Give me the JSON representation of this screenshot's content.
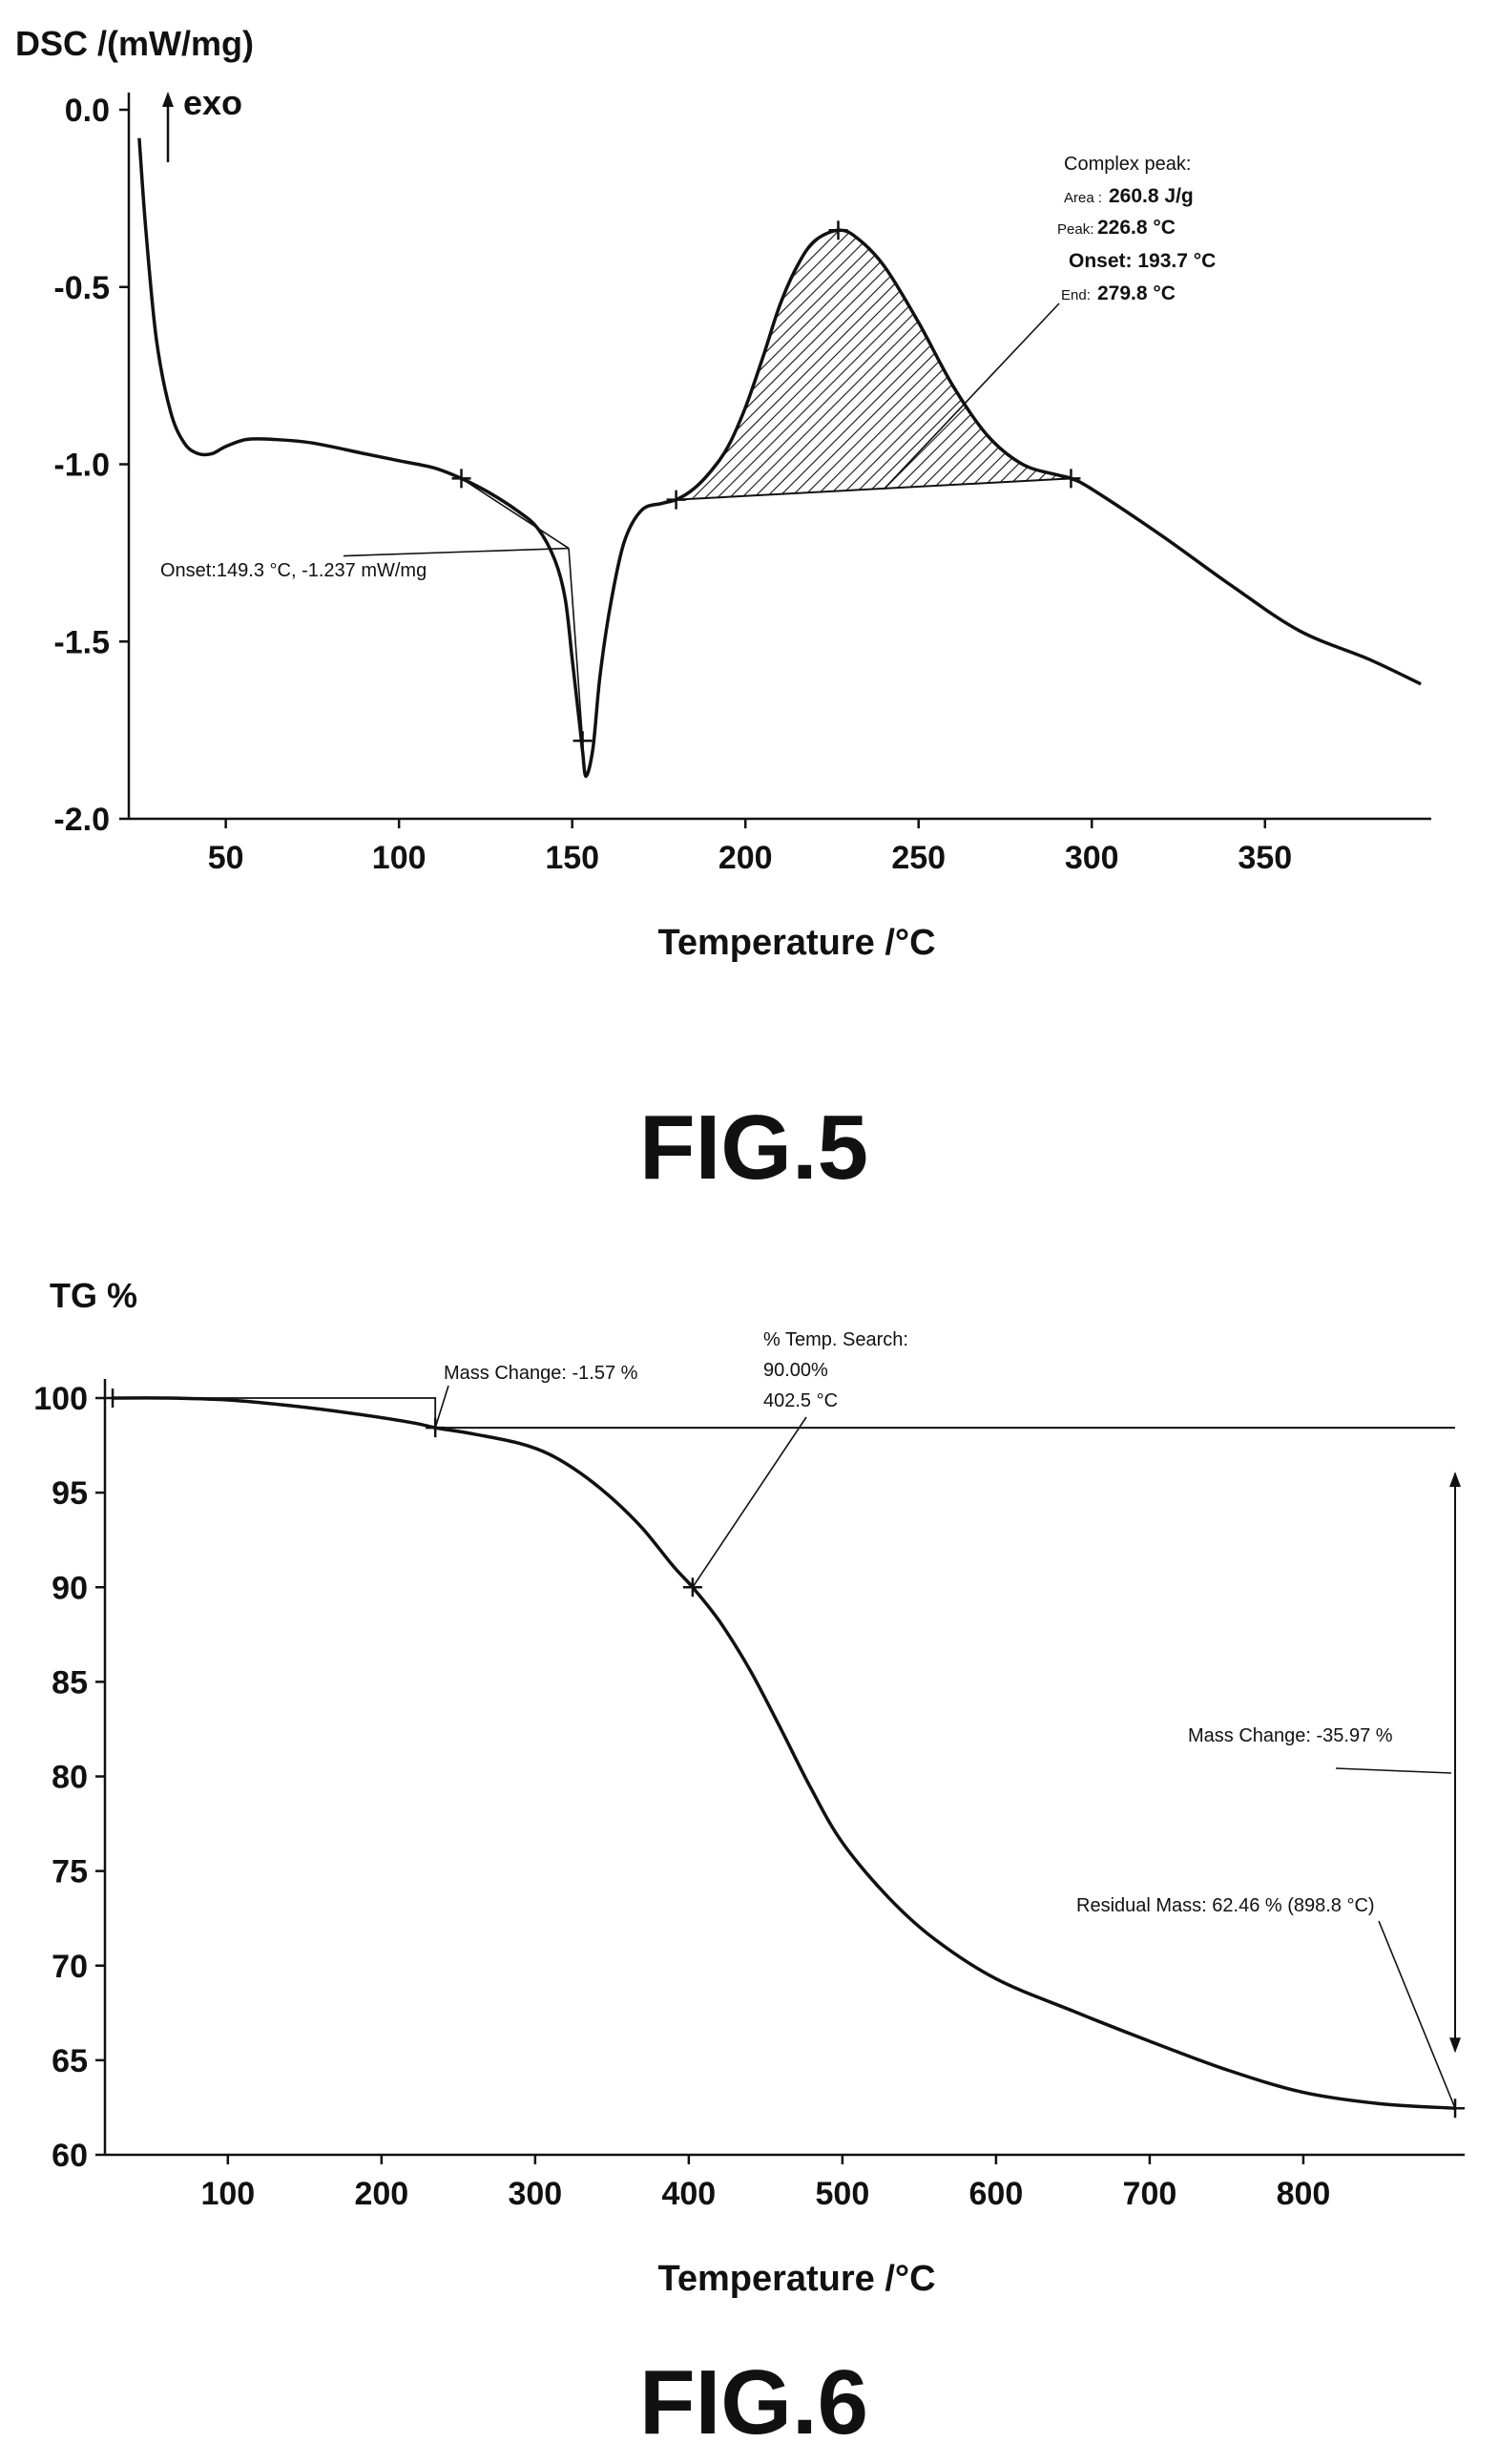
{
  "chart_data": [
    {
      "type": "line",
      "figure_label": "FIG.5",
      "ylabel": "DSC /(mW/mg)",
      "xlabel": "Temperature /°C",
      "exo_label": "exo",
      "xlim": [
        22,
        398
      ],
      "ylim": [
        -2.0,
        0.0
      ],
      "xticks": [
        50,
        100,
        150,
        200,
        250,
        300,
        350
      ],
      "yticks": [
        "0.0",
        "-0.5",
        "-1.0",
        "-1.5",
        "-2.0"
      ],
      "grid": false,
      "series": [
        {
          "x": [
            25,
            27,
            30,
            34,
            38,
            42,
            46,
            50,
            56,
            64,
            75,
            90,
            100,
            110,
            118,
            126,
            134,
            140,
            145,
            148,
            150,
            152,
            153,
            154,
            156,
            158,
            161,
            165,
            170,
            176,
            180,
            185,
            190,
            195,
            200,
            205,
            210,
            215,
            220,
            226.8,
            232,
            240,
            250,
            260,
            270,
            280,
            290,
            294,
            300,
            320,
            340,
            360,
            380,
            395
          ],
          "y": [
            -0.08,
            -0.35,
            -0.65,
            -0.85,
            -0.94,
            -0.97,
            -0.97,
            -0.95,
            -0.93,
            -0.93,
            -0.94,
            -0.97,
            -0.99,
            -1.01,
            -1.04,
            -1.08,
            -1.13,
            -1.18,
            -1.27,
            -1.38,
            -1.55,
            -1.72,
            -1.81,
            -1.88,
            -1.8,
            -1.6,
            -1.4,
            -1.22,
            -1.13,
            -1.11,
            -1.1,
            -1.07,
            -1.02,
            -0.95,
            -0.84,
            -0.7,
            -0.55,
            -0.44,
            -0.37,
            -0.34,
            -0.36,
            -0.44,
            -0.6,
            -0.78,
            -0.92,
            -1.0,
            -1.03,
            -1.04,
            -1.07,
            -1.2,
            -1.34,
            -1.47,
            -1.55,
            -1.62
          ]
        }
      ],
      "markers": [
        {
          "x": 118,
          "y": -1.04
        },
        {
          "x": 153,
          "y": -1.78
        },
        {
          "x": 180,
          "y": -1.1
        },
        {
          "x": 226.8,
          "y": -0.34
        },
        {
          "x": 294,
          "y": -1.04
        }
      ],
      "peak_shading": {
        "x_start": 180,
        "x_end": 294
      },
      "annotations": {
        "onset": "Onset:149.3 °C, -1.237 mW/mg",
        "complex_title": "Complex peak:",
        "area_label": "Area :",
        "area_value": "260.8 J/g",
        "peak_label": "Peak:",
        "peak_value": "226.8 °C",
        "onset2": "Onset: 193.7 °C",
        "end_label": "End:",
        "end_value": "279.8 °C"
      }
    },
    {
      "type": "line",
      "figure_label": "FIG.6",
      "ylabel": "TG %",
      "xlabel": "Temperature /°C",
      "xlim": [
        20,
        905
      ],
      "ylim": [
        60,
        100
      ],
      "xticks": [
        100,
        200,
        300,
        400,
        500,
        600,
        700,
        800
      ],
      "yticks": [
        100,
        95,
        90,
        85,
        80,
        75,
        70,
        65,
        60
      ],
      "grid": false,
      "series": [
        {
          "x": [
            25,
            60,
            100,
            140,
            180,
            220,
            235,
            260,
            290,
            310,
            330,
            350,
            370,
            390,
            402.5,
            420,
            440,
            460,
            480,
            500,
            530,
            560,
            600,
            650,
            700,
            750,
            800,
            850,
            898.8
          ],
          "y": [
            100,
            100,
            99.9,
            99.6,
            99.2,
            98.7,
            98.43,
            98.1,
            97.6,
            97.0,
            96.0,
            94.7,
            93.1,
            91.1,
            90.0,
            88.2,
            85.6,
            82.5,
            79.3,
            76.5,
            73.6,
            71.4,
            69.3,
            67.6,
            66.0,
            64.5,
            63.3,
            62.7,
            62.46
          ]
        }
      ],
      "markers": [
        {
          "x": 25,
          "y": 100
        },
        {
          "x": 235,
          "y": 98.43
        },
        {
          "x": 402.5,
          "y": 90.0
        },
        {
          "x": 898.8,
          "y": 62.46
        }
      ],
      "reference_level": 98.43,
      "mass_change_arrow": {
        "from": 98.43,
        "to": 62.46
      },
      "annotations": {
        "mass_change_1": "Mass Change: -1.57 %",
        "temp_search_title": "% Temp. Search:",
        "temp_search_pct": "90.00%",
        "temp_search_temp": "402.5 °C",
        "mass_change_2": "Mass Change: -35.97 %",
        "residual": "Residual Mass: 62.46 % (898.8 °C)"
      }
    }
  ]
}
